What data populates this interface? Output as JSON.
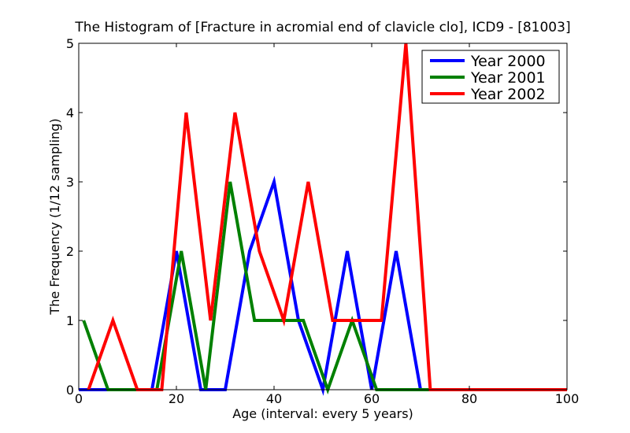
{
  "chart_data": {
    "type": "line",
    "title": "The Histogram of [Fracture in acromial end of clavicle clo], ICD9 - [81003]",
    "xlabel": "Age (interval: every 5 years)",
    "ylabel": "The Frequency (1/12 sampling)",
    "xlim": [
      0,
      100
    ],
    "ylim": [
      0,
      5
    ],
    "xticks": [
      0,
      20,
      40,
      60,
      80,
      100
    ],
    "yticks": [
      0,
      1,
      2,
      3,
      4,
      5
    ],
    "grid": false,
    "legend_position": "top-right",
    "series": [
      {
        "name": "Year 2000",
        "color": "#0000ff",
        "x": [
          0,
          5,
          10,
          15,
          20,
          25,
          30,
          35,
          40,
          45,
          50,
          55,
          60,
          65,
          70,
          75,
          80,
          85,
          90,
          95,
          100
        ],
        "y": [
          0,
          0,
          0,
          0,
          2,
          0,
          0,
          2,
          3,
          1,
          0,
          2,
          0,
          2,
          0,
          0,
          0,
          0,
          0,
          0,
          0
        ]
      },
      {
        "name": "Year 2001",
        "color": "#008000",
        "x": [
          1,
          6,
          11,
          16,
          21,
          26,
          31,
          36,
          41,
          46,
          51,
          56,
          61,
          66,
          71,
          76,
          81,
          86,
          91,
          96,
          100
        ],
        "y": [
          1,
          0,
          0,
          0,
          2,
          0,
          3,
          1,
          1,
          1,
          0,
          1,
          0,
          0,
          0,
          0,
          0,
          0,
          0,
          0,
          0
        ]
      },
      {
        "name": "Year 2002",
        "color": "#ff0000",
        "x": [
          2,
          7,
          12,
          17,
          22,
          27,
          32,
          37,
          42,
          47,
          52,
          57,
          62,
          67,
          72,
          77,
          82,
          87,
          92,
          97,
          100
        ],
        "y": [
          0,
          1,
          0,
          0,
          4,
          1,
          4,
          2,
          1,
          3,
          1,
          1,
          1,
          5,
          0,
          0,
          0,
          0,
          0,
          0,
          0
        ]
      }
    ]
  }
}
